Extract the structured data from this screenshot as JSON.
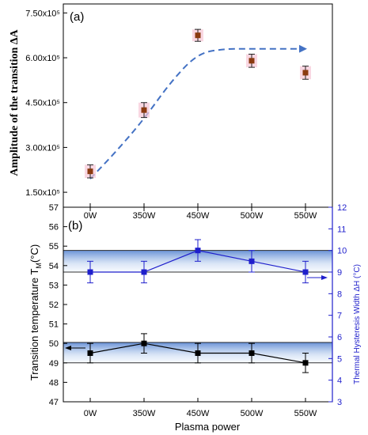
{
  "chart_data": [
    {
      "type": "scatter",
      "panel_label": "(a)",
      "title": "",
      "xlabel": "",
      "ylabel": "Amplitude of the transition ΔA",
      "categories": [
        "0W",
        "350W",
        "450W",
        "500W",
        "550W"
      ],
      "y_tick_labels": [
        "1.50x10⁵",
        "3.00x10⁵",
        "4.50x10⁵",
        "6.00x10⁵",
        "7.50x10⁵"
      ],
      "y_tick_values": [
        150000,
        300000,
        450000,
        600000,
        750000
      ],
      "ylim": [
        100000,
        780000
      ],
      "grid": false,
      "series": [
        {
          "values": [
            220000,
            425000,
            675000,
            590000,
            550000
          ],
          "errors": [
            22000,
            25000,
            20000,
            22000,
            22000
          ],
          "color": "#8B3A10"
        }
      ],
      "trend_curve": {
        "x": [
          0,
          0.5,
          1,
          1.5,
          2,
          2.5,
          3,
          3.5,
          4
        ],
        "y": [
          195000,
          290000,
          395000,
          520000,
          615000,
          630000,
          630000,
          630000,
          630000
        ],
        "color": "#4472C4",
        "style": "dashed-arrow"
      }
    },
    {
      "type": "line",
      "panel_label": "(b)",
      "title": "",
      "xlabel": "Plasma power",
      "ylabel": "Transition temperature T",
      "ylabel_subscript": "M",
      "ylabel_suffix": "(°C)",
      "y2label": "Thermal Hysteresis Width ΔH (°C)",
      "categories": [
        "0W",
        "350W",
        "450W",
        "500W",
        "550W"
      ],
      "ylim": [
        47,
        57
      ],
      "y_ticks": [
        "47",
        "48",
        "49",
        "50",
        "51",
        "52",
        "53",
        "54",
        "55",
        "56",
        "57"
      ],
      "y2lim": [
        3,
        12
      ],
      "y2_ticks": [
        "3",
        "4",
        "5",
        "6",
        "7",
        "8",
        "9",
        "10",
        "11",
        "12"
      ],
      "grid": false,
      "series": [
        {
          "axis": "left",
          "values": [
            49.5,
            50.0,
            49.5,
            49.5,
            49.0
          ],
          "errors": [
            0.5,
            0.5,
            0.5,
            0.5,
            0.5
          ],
          "color": "#000000",
          "band": [
            49.0,
            50.05
          ]
        },
        {
          "axis": "right",
          "values": [
            9.0,
            9.0,
            10.0,
            9.5,
            9.0
          ],
          "errors": [
            0.5,
            0.5,
            0.5,
            0.5,
            0.5
          ],
          "color": "#1F1FCC",
          "band": [
            9.0,
            10.0
          ]
        }
      ]
    }
  ]
}
